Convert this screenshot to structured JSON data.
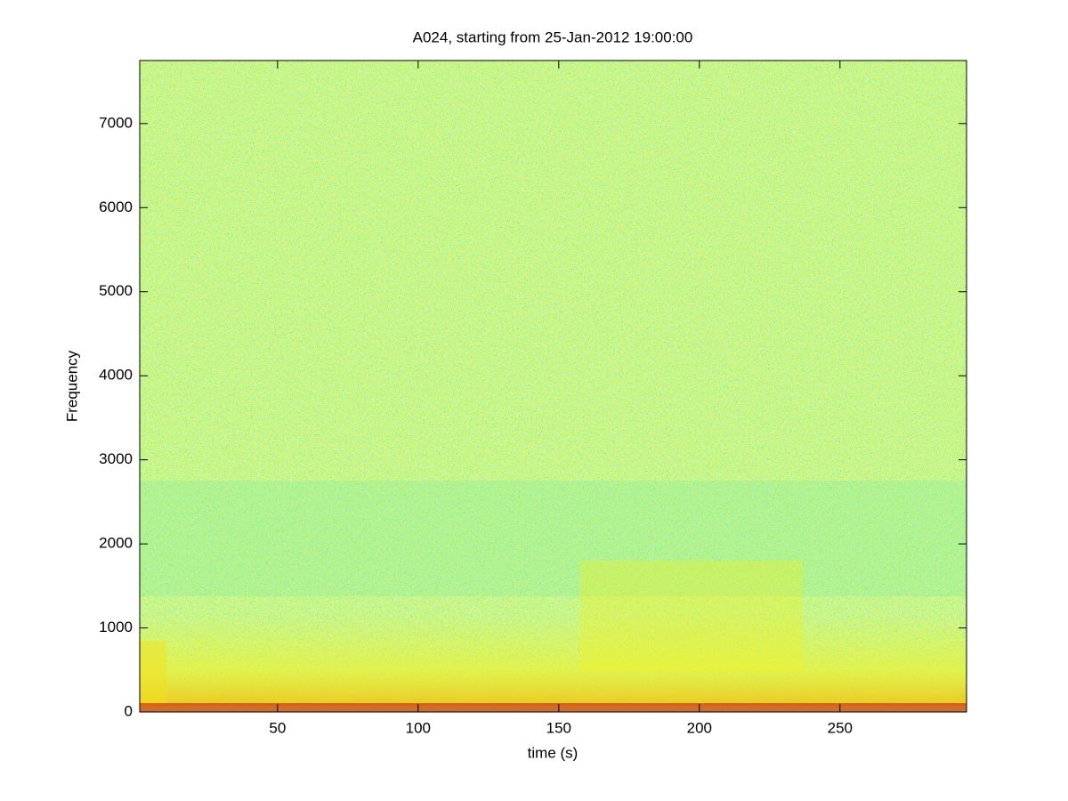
{
  "chart_data": {
    "type": "spectrogram",
    "title": "A024, starting from 25-Jan-2012 19:00:00",
    "x_label": "time (s)",
    "y_label": "Frequency",
    "xlim": [
      1,
      295
    ],
    "xticks": [
      50,
      100,
      150,
      200,
      250
    ],
    "ylim": [
      0,
      7750
    ],
    "yticks": [
      0,
      1000,
      2000,
      3000,
      4000,
      5000,
      6000,
      7000
    ]
  }
}
